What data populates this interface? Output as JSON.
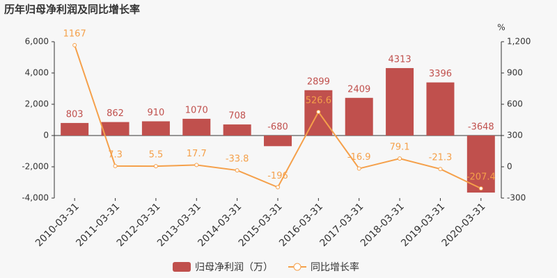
{
  "chart_data": {
    "type": "bar_line",
    "title": "历年归母净利润及同比增长率",
    "categories": [
      "2010-03-31",
      "2011-03-31",
      "2012-03-31",
      "2013-03-31",
      "2014-03-31",
      "2015-03-31",
      "2016-03-31",
      "2017-03-31",
      "2018-03-31",
      "2019-03-31",
      "2020-03-31"
    ],
    "series": [
      {
        "name": "归母净利润（万）",
        "type": "bar",
        "color": "#c0504d",
        "values": [
          803,
          862,
          910,
          1070,
          708,
          -680,
          2899,
          2409,
          4313,
          3396,
          -3648
        ]
      },
      {
        "name": "同比增长率",
        "type": "line",
        "axis": "y2",
        "color": "#f5a04a",
        "values": [
          1167,
          7.3,
          5.5,
          17.7,
          -33.8,
          -196,
          526.6,
          -16.9,
          79.1,
          -21.3,
          -207.4
        ]
      }
    ],
    "ylim": [
      -4000,
      6000
    ],
    "yticks": [
      {
        "value": -4000,
        "label": "-4,000"
      },
      {
        "value": -2000,
        "label": "-2,000"
      },
      0,
      {
        "value": 2000,
        "label": "2,000"
      },
      {
        "value": 4000,
        "label": "4,000"
      },
      {
        "value": 6000,
        "label": "6,000"
      }
    ],
    "y2lim": [
      -300,
      1200
    ],
    "y2ticks": [
      -300,
      0,
      300,
      600,
      900,
      {
        "value": 1200,
        "label": "1,200"
      }
    ],
    "y2_label": "%"
  }
}
